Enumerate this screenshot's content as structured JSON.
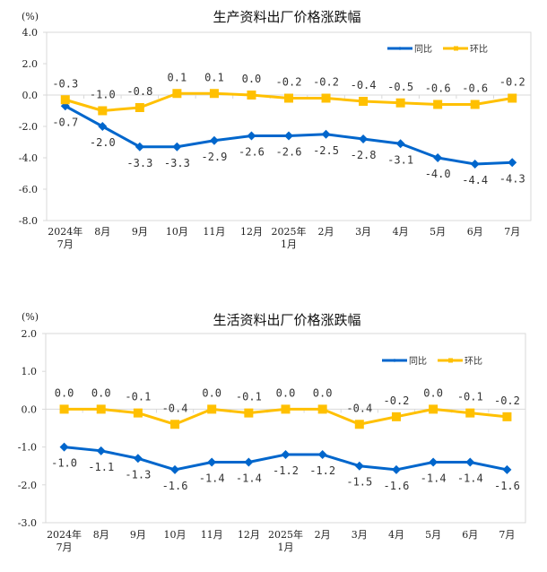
{
  "chart_data": [
    {
      "type": "line",
      "title": "生产资料出厂价格涨跌幅",
      "ylabel": "(%)",
      "ylim": [
        -8.0,
        4.0
      ],
      "yticks": [
        "4.0",
        "2.0",
        "0.0",
        "-2.0",
        "-4.0",
        "-6.0",
        "-8.0"
      ],
      "ytick_values": [
        4,
        2,
        0,
        -2,
        -4,
        -6,
        -8
      ],
      "categories": [
        [
          "2024年",
          "7月"
        ],
        [
          "8月"
        ],
        [
          "9月"
        ],
        [
          "10月"
        ],
        [
          "11月"
        ],
        [
          "12月"
        ],
        [
          "2025年",
          "1月"
        ],
        [
          "2月"
        ],
        [
          "3月"
        ],
        [
          "4月"
        ],
        [
          "5月"
        ],
        [
          "6月"
        ],
        [
          "7月"
        ]
      ],
      "legend_position": "top-right",
      "grid": false,
      "series": [
        {
          "name": "同比",
          "color": "#0066CC",
          "marker": "diamond",
          "values": [
            -0.7,
            -2.0,
            -3.3,
            -3.3,
            -2.9,
            -2.6,
            -2.6,
            -2.5,
            -2.8,
            -3.1,
            -4.0,
            -4.4,
            -4.3
          ],
          "labels": [
            "-0.7",
            "-2.0",
            "-3.3",
            "-3.3",
            "-2.9",
            "-2.6",
            "-2.6",
            "-2.5",
            "-2.8",
            "-3.1",
            "-4.0",
            "-4.4",
            "-4.3"
          ],
          "label_side": "below"
        },
        {
          "name": "环比",
          "color": "#FFC000",
          "marker": "square",
          "values": [
            -0.3,
            -1.0,
            -0.8,
            0.1,
            0.1,
            0.0,
            -0.2,
            -0.2,
            -0.4,
            -0.5,
            -0.6,
            -0.6,
            -0.2
          ],
          "labels": [
            "-0.3",
            "-1.0",
            "-0.8",
            "0.1",
            "0.1",
            "0.0",
            "-0.2",
            "-0.2",
            "-0.4",
            "-0.5",
            "-0.6",
            "-0.6",
            "-0.2"
          ],
          "label_side": "above"
        }
      ]
    },
    {
      "type": "line",
      "title": "生活资料出厂价格涨跌幅",
      "ylabel": "(%)",
      "ylim": [
        -3.0,
        2.0
      ],
      "yticks": [
        "2.0",
        "1.0",
        "0.0",
        "-1.0",
        "-2.0",
        "-3.0"
      ],
      "ytick_values": [
        2,
        1,
        0,
        -1,
        -2,
        -3
      ],
      "categories": [
        [
          "2024年",
          "7月"
        ],
        [
          "8月"
        ],
        [
          "9月"
        ],
        [
          "10月"
        ],
        [
          "11月"
        ],
        [
          "12月"
        ],
        [
          "2025年",
          "1月"
        ],
        [
          "2月"
        ],
        [
          "3月"
        ],
        [
          "4月"
        ],
        [
          "5月"
        ],
        [
          "6月"
        ],
        [
          "7月"
        ]
      ],
      "legend_position": "top-right",
      "grid": false,
      "series": [
        {
          "name": "同比",
          "color": "#0066CC",
          "marker": "diamond",
          "values": [
            -1.0,
            -1.1,
            -1.3,
            -1.6,
            -1.4,
            -1.4,
            -1.2,
            -1.2,
            -1.5,
            -1.6,
            -1.4,
            -1.4,
            -1.6
          ],
          "labels": [
            "-1.0",
            "-1.1",
            "-1.3",
            "-1.6",
            "-1.4",
            "-1.4",
            "-1.2",
            "-1.2",
            "-1.5",
            "-1.6",
            "-1.4",
            "-1.4",
            "-1.6"
          ],
          "label_side": "below"
        },
        {
          "name": "环比",
          "color": "#FFC000",
          "marker": "square",
          "values": [
            0.0,
            0.0,
            -0.1,
            -0.4,
            0.0,
            -0.1,
            0.0,
            0.0,
            -0.4,
            -0.2,
            0.0,
            -0.1,
            -0.2
          ],
          "labels": [
            "0.0",
            "0.0",
            "-0.1",
            "-0.4",
            "0.0",
            "-0.1",
            "0.0",
            "0.0",
            "-0.4",
            "-0.2",
            "0.0",
            "-0.1",
            "-0.2"
          ],
          "label_side": "above"
        }
      ]
    }
  ]
}
